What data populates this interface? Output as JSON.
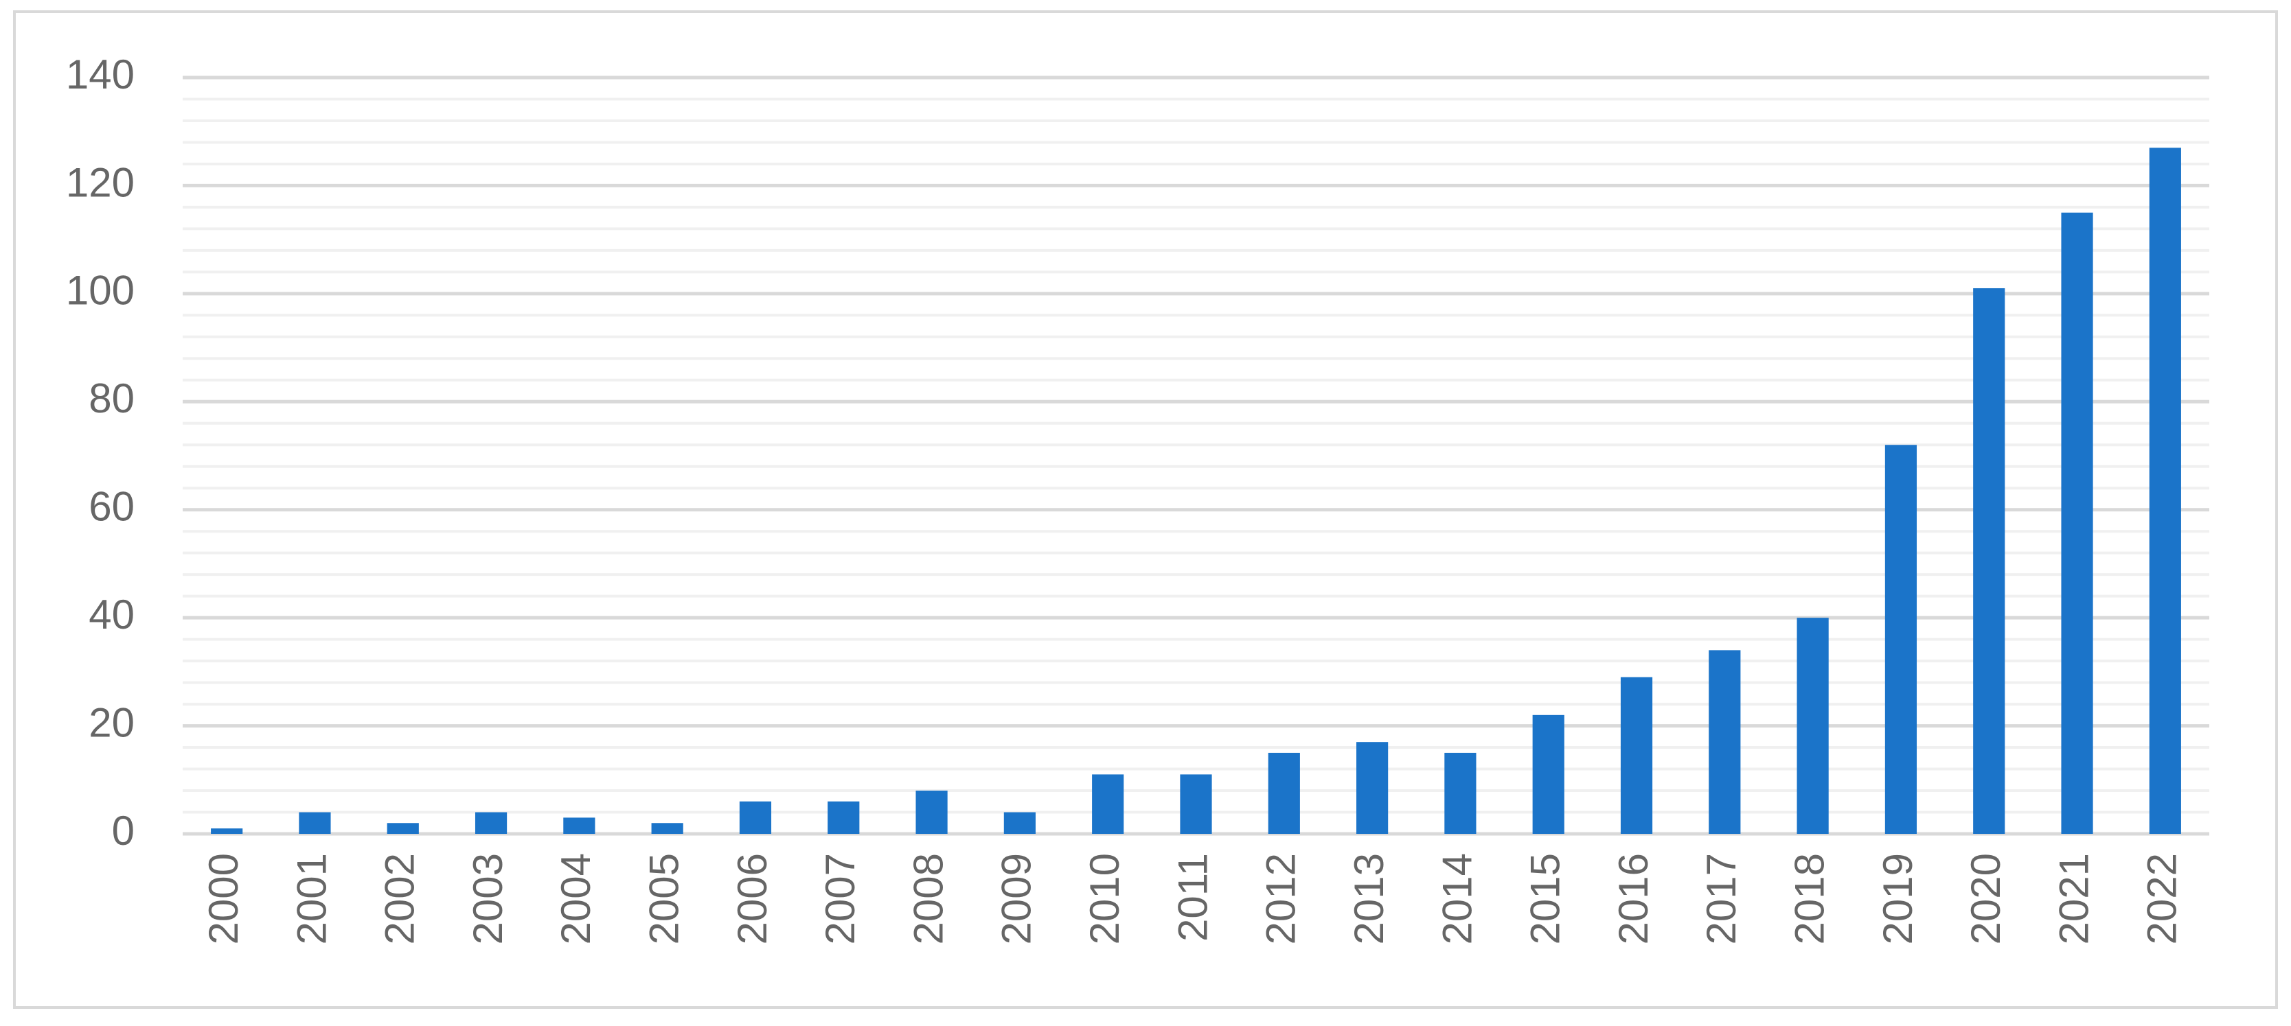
{
  "chart_data": {
    "type": "bar",
    "categories": [
      "2000",
      "2001",
      "2002",
      "2003",
      "2004",
      "2005",
      "2006",
      "2007",
      "2008",
      "2009",
      "2010",
      "2011",
      "2012",
      "2013",
      "2014",
      "2015",
      "2016",
      "2017",
      "2018",
      "2019",
      "2020",
      "2021",
      "2022"
    ],
    "values": [
      1,
      4,
      2,
      4,
      3,
      2,
      6,
      6,
      8,
      4,
      11,
      11,
      15,
      17,
      15,
      22,
      29,
      34,
      40,
      72,
      101,
      115,
      127
    ],
    "color": "#1b74c9",
    "ylim": [
      0,
      140
    ],
    "yticks": [
      0,
      20,
      40,
      60,
      80,
      100,
      120,
      140
    ],
    "grid": true
  }
}
